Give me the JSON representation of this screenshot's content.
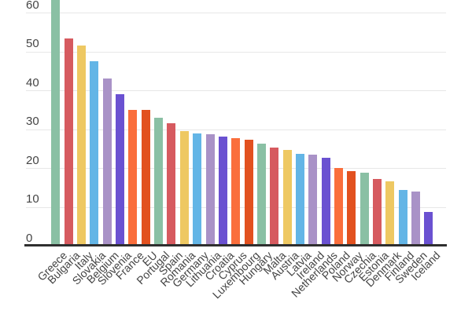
{
  "chart_data": {
    "type": "bar",
    "title": "",
    "xlabel": "",
    "ylabel": "",
    "categories": [
      "Greece",
      "Bulgaria",
      "Italy",
      "Slovakia",
      "Belgium",
      "Slovenia",
      "France",
      "EU",
      "Portugal",
      "Spain",
      "Romania",
      "Germany",
      "Lithuania",
      "Croatia",
      "Cyprus",
      "Luxembourg",
      "Hungary",
      "Malta",
      "Austria",
      "Latvia",
      "Ireland",
      "Netherlands",
      "Poland",
      "Norway",
      "Czechia",
      "Estonia",
      "Denmark",
      "Finland",
      "Sweden",
      "Iceland"
    ],
    "values": [
      66,
      53.5,
      51.5,
      47.5,
      43,
      39,
      35,
      35,
      33,
      31.5,
      29.5,
      29,
      28.8,
      28.2,
      27.8,
      27.4,
      26.2,
      25.3,
      24.6,
      23.7,
      23.5,
      22.6,
      20.1,
      19.3,
      18.9,
      17.1,
      16.5,
      14.3,
      14,
      8.8
    ],
    "yticks": [
      0,
      10,
      20,
      30,
      40,
      50,
      60
    ],
    "ylim_visible": [
      0,
      63.5
    ],
    "grid": true,
    "legend": false,
    "bar_palette_cycle": [
      "#8ac0a4",
      "#d65a5f",
      "#eec862",
      "#63b5e6",
      "#a992c7",
      "#6a51d1",
      "#fa6e3c",
      "#e2511f"
    ],
    "clipped_bars": [
      "Greece"
    ]
  },
  "style": {
    "background": "#ffffff",
    "gridline_color": "#e7e7e7",
    "axis_line_color": "#2f2f2f",
    "tick_label_color": "#444444",
    "category_label_color": "#444444"
  }
}
